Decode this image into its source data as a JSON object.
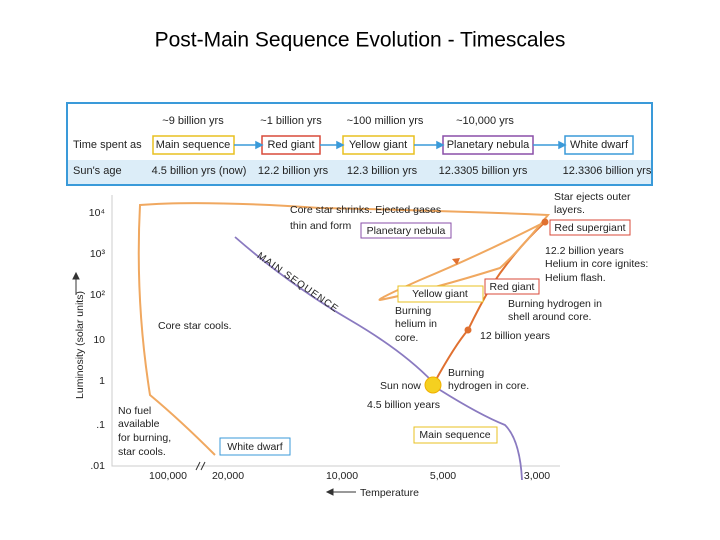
{
  "title": "Post-Main Sequence Evolution - Timescales",
  "table": {
    "timescales": [
      "~9 billion yrs",
      "~1 billion yrs",
      "~100 million yrs",
      "~10,000 yrs"
    ],
    "row_label_time": "Time spent as",
    "stages": [
      "Main sequence",
      "Red giant",
      "Yellow giant",
      "Planetary nebula",
      "White dwarf"
    ],
    "row_label_age": "Sun's age",
    "ages": [
      "4.5 billion yrs (now)",
      "12.2 billion yrs",
      "12.3 billion yrs",
      "12.3305 billion yrs",
      "12.3306 billion yrs"
    ]
  },
  "diagram": {
    "y_axis_label": "Luminosity (solar units)",
    "y_ticks": [
      "10⁴",
      "10³",
      "10²",
      "10",
      "1",
      ".1",
      ".01"
    ],
    "x_axis_label": "Temperature",
    "x_ticks": [
      "100,000",
      "20,000",
      "10,000",
      "5,000",
      "3,000"
    ],
    "main_sequence_label": "MAIN SEQUENCE",
    "annotations": {
      "planetary_nebula_note": [
        "Core star shrinks. Ejected gases",
        "thin and form"
      ],
      "planetary_nebula": "Planetary nebula",
      "star_ejects": [
        "Star ejects outer",
        "layers."
      ],
      "red_supergiant": "Red supergiant",
      "helium_flash": [
        "12.2 billion years",
        "Helium in core ignites:",
        "Helium flash."
      ],
      "red_giant": "Red giant",
      "yellow_giant": "Yellow giant",
      "shell_burning": [
        "Burning hydrogen in",
        "shell around core."
      ],
      "helium_burning": [
        "Burning",
        "helium in",
        "core."
      ],
      "twelve_billion": "12 billion years",
      "core_cools": "Core star cools.",
      "core_burning": [
        "Burning",
        "hydrogen in core."
      ],
      "sun_now": "Sun now",
      "sun_age": "4.5 billion years",
      "main_sequence": "Main sequence",
      "no_fuel": [
        "No fuel",
        "available",
        "for burning,",
        "star cools."
      ],
      "white_dwarf": "White dwarf"
    }
  }
}
